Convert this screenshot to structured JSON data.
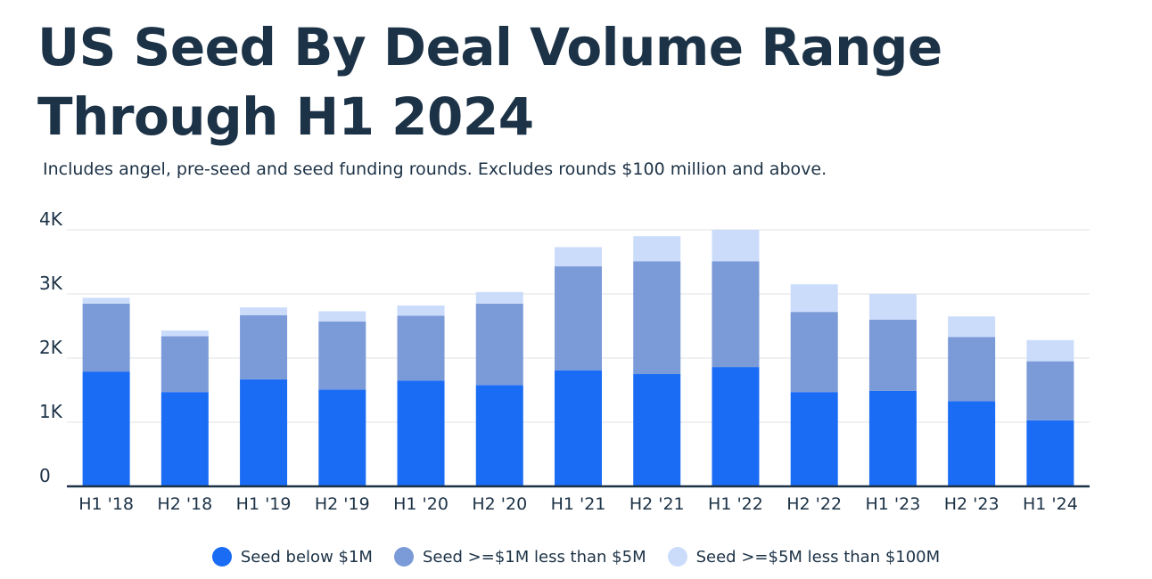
{
  "chart_data": {
    "type": "bar",
    "stacked": true,
    "title": "US Seed By Deal Volume Range Through H1 2024",
    "subtitle": "Includes angel, pre-seed and seed funding rounds. Excludes rounds $100 million and above.",
    "categories": [
      "H1 '18",
      "H2 '18",
      "H1 '19",
      "H2 '19",
      "H1 '20",
      "H2 '20",
      "H1 '21",
      "H2 '21",
      "H1 '22",
      "H2 '22",
      "H1 '23",
      "H2 '23",
      "H1 '24"
    ],
    "series": [
      {
        "name": "Seed below $1M",
        "color": "#1a6cf5",
        "values": [
          1790,
          1470,
          1670,
          1510,
          1650,
          1580,
          1810,
          1750,
          1860,
          1470,
          1490,
          1330,
          1030
        ]
      },
      {
        "name": "Seed >=$1M less than $5M",
        "color": "#7b9ad8",
        "values": [
          1060,
          870,
          1000,
          1060,
          1010,
          1270,
          1620,
          1760,
          1650,
          1250,
          1110,
          1000,
          920
        ]
      },
      {
        "name": "Seed >=$5M less than $100M",
        "color": "#cbdcfb",
        "values": [
          90,
          90,
          120,
          160,
          160,
          180,
          300,
          390,
          490,
          430,
          400,
          320,
          330
        ]
      }
    ],
    "yticks": [
      0,
      1000,
      2000,
      3000,
      4000
    ],
    "ytick_labels": [
      "0",
      "1K",
      "2K",
      "3K",
      "4K"
    ],
    "ylim": [
      0,
      4000
    ],
    "xlabel": "",
    "ylabel": "",
    "grid": true,
    "legend_position": "bottom-center"
  }
}
